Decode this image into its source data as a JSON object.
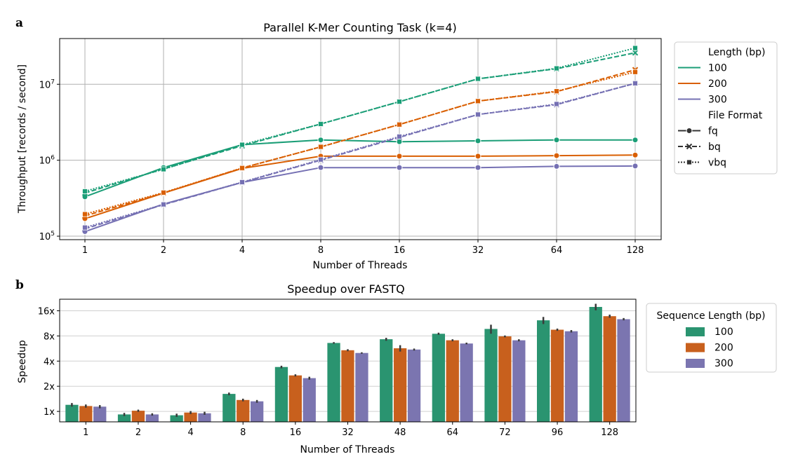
{
  "chart_data": [
    {
      "panel_letter": "a",
      "type": "line",
      "title": "Parallel K-Mer Counting Task (k=4)",
      "xlabel": "Number of Threads",
      "ylabel": "Throughput [records / second]",
      "x": [
        "1",
        "2",
        "4",
        "8",
        "16",
        "32",
        "64",
        "128"
      ],
      "yscale": "log",
      "ylim": [
        90000,
        40000000
      ],
      "y_ticks": [
        {
          "base": "10",
          "exp": "5"
        },
        {
          "base": "10",
          "exp": "6"
        },
        {
          "base": "10",
          "exp": "7"
        }
      ],
      "grid": true,
      "legend": {
        "placement": "outside-right",
        "hue_title": "Length (bp)",
        "style_title": "File Format",
        "hue_entries": [
          "100",
          "200",
          "300"
        ],
        "style_entries": [
          "fq",
          "bq",
          "vbq"
        ]
      },
      "colors": {
        "100": "#1b9e77",
        "200": "#d95f02",
        "300": "#7570b3"
      },
      "series": [
        {
          "length": "100",
          "format": "fq",
          "values": [
            330000,
            800000,
            1600000,
            1850000,
            1750000,
            1800000,
            1850000,
            1850000
          ]
        },
        {
          "length": "100",
          "format": "bq",
          "values": [
            370000,
            770000,
            1550000,
            3000000,
            5900000,
            11800000,
            16000000,
            26000000
          ]
        },
        {
          "length": "100",
          "format": "vbq",
          "values": [
            390000,
            760000,
            1600000,
            3000000,
            5900000,
            11800000,
            16200000,
            30000000
          ]
        },
        {
          "length": "200",
          "format": "fq",
          "values": [
            170000,
            370000,
            780000,
            1130000,
            1130000,
            1130000,
            1150000,
            1170000
          ]
        },
        {
          "length": "200",
          "format": "bq",
          "values": [
            185000,
            370000,
            790000,
            1500000,
            2950000,
            6000000,
            8000000,
            15500000
          ]
        },
        {
          "length": "200",
          "format": "vbq",
          "values": [
            195000,
            375000,
            790000,
            1500000,
            2950000,
            6000000,
            8100000,
            14500000
          ]
        },
        {
          "length": "300",
          "format": "fq",
          "values": [
            115000,
            265000,
            510000,
            800000,
            800000,
            800000,
            830000,
            840000
          ]
        },
        {
          "length": "300",
          "format": "bq",
          "values": [
            125000,
            260000,
            510000,
            1000000,
            2000000,
            4000000,
            5400000,
            10300000
          ]
        },
        {
          "length": "300",
          "format": "vbq",
          "values": [
            130000,
            262000,
            515000,
            1020000,
            2050000,
            4000000,
            5500000,
            10300000
          ]
        }
      ]
    },
    {
      "panel_letter": "b",
      "type": "bar",
      "title": "Speedup over FASTQ",
      "xlabel": "Number of Threads",
      "ylabel": "Speedup",
      "categories": [
        "1",
        "2",
        "4",
        "8",
        "16",
        "32",
        "48",
        "64",
        "72",
        "96",
        "128"
      ],
      "yscale": "log2",
      "ylim": [
        0.75,
        22
      ],
      "y_ticks": [
        "1x",
        "2x",
        "4x",
        "8x",
        "16x"
      ],
      "y_tick_values": [
        1,
        2,
        4,
        8,
        16
      ],
      "grid": true,
      "legend": {
        "placement": "outside-right",
        "title": "Sequence Length (bp)"
      },
      "series": [
        {
          "name": "100",
          "color": "#2a9470",
          "values": [
            1.2,
            0.92,
            0.9,
            1.62,
            3.4,
            6.6,
            7.3,
            8.5,
            9.7,
            12.3,
            17.8
          ],
          "err": [
            0.06,
            0.04,
            0.04,
            0.06,
            0.12,
            0.15,
            0.3,
            0.25,
            1.2,
            1.2,
            1.6
          ]
        },
        {
          "name": "200",
          "color": "#c8601d",
          "values": [
            1.16,
            1.02,
            0.97,
            1.37,
            2.7,
            5.4,
            5.7,
            7.1,
            7.9,
            9.5,
            13.8
          ],
          "err": [
            0.05,
            0.03,
            0.04,
            0.05,
            0.08,
            0.15,
            0.5,
            0.2,
            0.2,
            0.3,
            0.6
          ]
        },
        {
          "name": "300",
          "color": "#7b75b0",
          "values": [
            1.14,
            0.92,
            0.95,
            1.32,
            2.5,
            5.0,
            5.5,
            6.5,
            7.1,
            9.1,
            12.7
          ],
          "err": [
            0.05,
            0.03,
            0.04,
            0.05,
            0.1,
            0.1,
            0.15,
            0.15,
            0.2,
            0.3,
            0.4
          ]
        }
      ]
    }
  ]
}
